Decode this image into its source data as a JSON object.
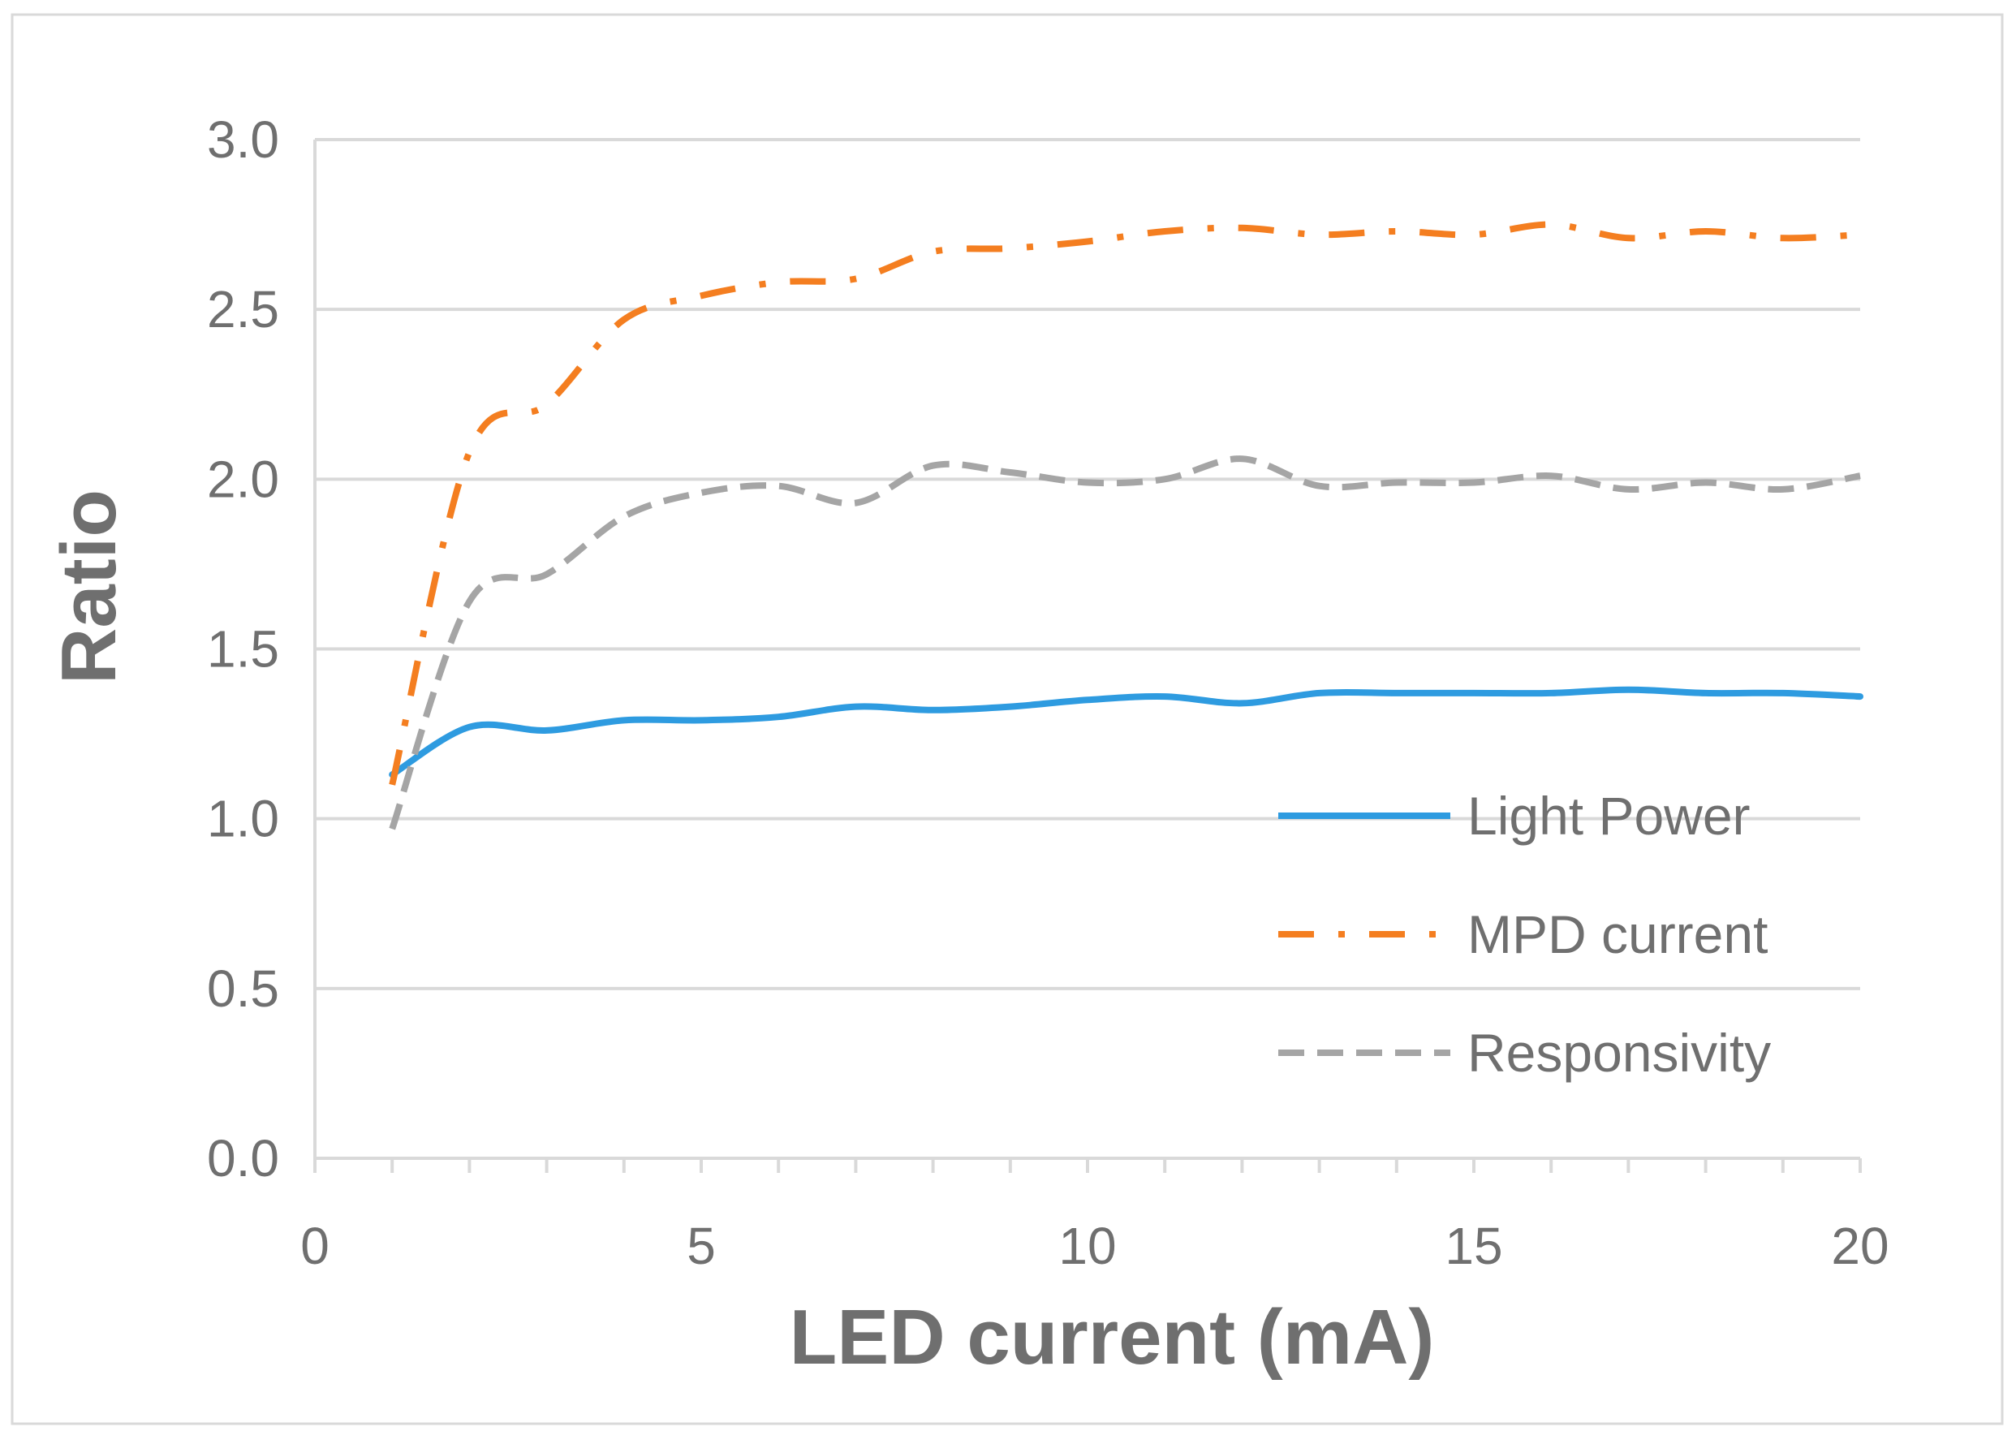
{
  "chart_data": {
    "type": "line",
    "xlabel": "LED current (mA)",
    "ylabel": "Ratio",
    "xlim": [
      0,
      20
    ],
    "ylim": [
      0,
      3
    ],
    "xticks": [
      0,
      5,
      10,
      15,
      20
    ],
    "yticks": [
      0,
      0.5,
      1,
      1.5,
      2,
      2.5,
      3
    ],
    "ytick_labels": [
      "0.0",
      "0.5",
      "1.0",
      "1.5",
      "2.0",
      "2.5",
      "3.0"
    ],
    "grid": "horizontal",
    "legend_position": "bottom-right",
    "x": [
      1,
      2,
      3,
      4,
      5,
      6,
      7,
      8,
      9,
      10,
      11,
      12,
      13,
      14,
      15,
      16,
      17,
      18,
      19,
      20
    ],
    "series": [
      {
        "name": "Light Power",
        "color": "#2e9be0",
        "dash": "solid",
        "values": [
          1.13,
          1.27,
          1.26,
          1.29,
          1.29,
          1.3,
          1.33,
          1.32,
          1.33,
          1.35,
          1.36,
          1.34,
          1.37,
          1.37,
          1.37,
          1.37,
          1.38,
          1.37,
          1.37,
          1.36
        ]
      },
      {
        "name": "MPD current",
        "color": "#f47e20",
        "dash": "dash-dot",
        "values": [
          1.1,
          2.08,
          2.22,
          2.47,
          2.54,
          2.58,
          2.59,
          2.67,
          2.68,
          2.7,
          2.73,
          2.74,
          2.72,
          2.73,
          2.72,
          2.75,
          2.71,
          2.73,
          2.71,
          2.72
        ]
      },
      {
        "name": "Responsivity",
        "color": "#a5a5a5",
        "dash": "dashed",
        "values": [
          0.97,
          1.64,
          1.72,
          1.89,
          1.96,
          1.98,
          1.93,
          2.04,
          2.02,
          1.99,
          2.0,
          2.06,
          1.98,
          1.99,
          1.99,
          2.01,
          1.97,
          1.99,
          1.97,
          2.01
        ]
      }
    ]
  }
}
